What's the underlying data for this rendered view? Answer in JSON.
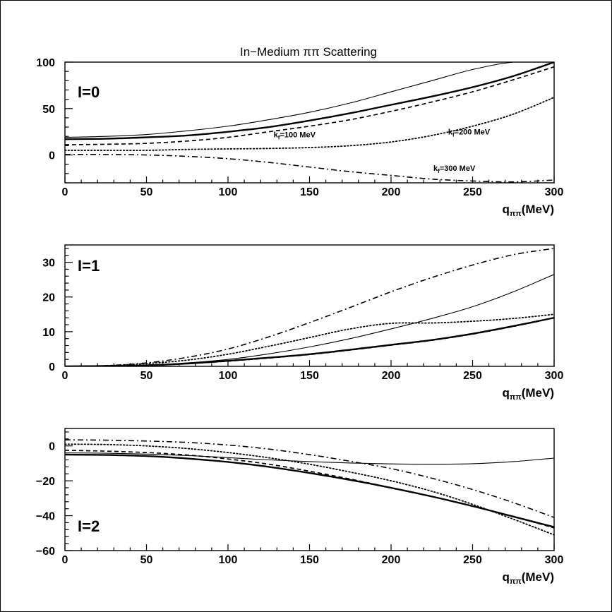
{
  "figure": {
    "title": "In−Medium ππ Scattering",
    "xlabel": "q_{ππ}(MeV)",
    "xlabel_main": "q",
    "xlabel_sub": "ππ",
    "xlabel_unit": "(MeV)"
  },
  "chart_data": [
    {
      "type": "line",
      "panel_label": "I=0",
      "title": "In−Medium ππ Scattering",
      "xlabel": "q_{ππ}(MeV)",
      "ylabel": "",
      "xlim": [
        0,
        300
      ],
      "ylim": [
        -30,
        100
      ],
      "xticks": [
        0,
        50,
        100,
        150,
        200,
        250,
        300
      ],
      "yticks": [
        0,
        50,
        100
      ],
      "x": [
        0,
        25,
        50,
        75,
        100,
        125,
        150,
        175,
        200,
        225,
        250,
        275,
        300
      ],
      "series": [
        {
          "style": "thin-solid",
          "values": [
            19,
            20,
            22,
            26,
            31,
            38,
            46,
            56,
            68,
            80,
            92,
            100,
            100
          ]
        },
        {
          "style": "thick-solid",
          "values": [
            17,
            17.5,
            19,
            21,
            25,
            30,
            37,
            45,
            54,
            63,
            73,
            85,
            100
          ]
        },
        {
          "style": "dashed",
          "values": [
            11,
            11.5,
            12.5,
            15,
            19,
            25,
            31,
            38,
            47,
            57,
            68,
            81,
            95
          ]
        },
        {
          "style": "dotted",
          "values": [
            5,
            5,
            5,
            6,
            6.5,
            7,
            8,
            10,
            14,
            21,
            31,
            44,
            62
          ]
        },
        {
          "style": "dash-dot",
          "values": [
            0.5,
            0.5,
            0,
            -1.5,
            -4,
            -8,
            -13,
            -18,
            -22,
            -26,
            -28,
            -29,
            -27
          ]
        }
      ],
      "annotations": [
        {
          "text": "k_f=100 MeV",
          "main": "k",
          "sub": "f",
          "rest": "=100 MeV",
          "x": 128,
          "y": 19
        },
        {
          "text": "k_f=200 MeV",
          "main": "k",
          "sub": "f",
          "rest": "=200 MeV",
          "x": 235,
          "y": 22
        },
        {
          "text": "k_f=300 MeV",
          "main": "k",
          "sub": "f",
          "rest": "=300 MeV",
          "x": 226,
          "y": -17
        }
      ]
    },
    {
      "type": "line",
      "panel_label": "I=1",
      "title": "",
      "xlabel": "q_{ππ}(MeV)",
      "ylabel": "",
      "xlim": [
        0,
        300
      ],
      "ylim": [
        0,
        35
      ],
      "xticks": [
        0,
        50,
        100,
        150,
        200,
        250,
        300
      ],
      "yticks": [
        0,
        10,
        20,
        30
      ],
      "x": [
        0,
        25,
        50,
        75,
        100,
        125,
        150,
        175,
        200,
        225,
        250,
        275,
        300
      ],
      "series": [
        {
          "style": "thin-solid",
          "values": [
            0,
            0.1,
            0.4,
            1.0,
            2.0,
            3.6,
            5.6,
            8.0,
            10.8,
            13.8,
            17.2,
            21.5,
            26.5
          ]
        },
        {
          "style": "thick-solid",
          "values": [
            0,
            0.1,
            0.3,
            0.8,
            1.6,
            2.5,
            3.5,
            4.8,
            6.2,
            7.6,
            9.4,
            11.6,
            14.0
          ]
        },
        {
          "style": "dashed",
          "values": [
            0,
            0.1,
            0.3,
            0.8,
            1.5,
            2.4,
            3.4,
            4.7,
            6.1,
            7.5,
            9.3,
            11.5,
            14.0
          ]
        },
        {
          "style": "dotted",
          "values": [
            0,
            0.2,
            0.8,
            1.8,
            3.5,
            5.8,
            8.3,
            10.8,
            12.4,
            12.5,
            13.0,
            13.8,
            15.0
          ]
        },
        {
          "style": "dash-dot",
          "values": [
            0,
            0.2,
            1.0,
            2.6,
            5.0,
            8.5,
            12.6,
            17.0,
            21.5,
            25.6,
            29.2,
            32.2,
            34.0
          ]
        }
      ]
    },
    {
      "type": "line",
      "panel_label": "I=2",
      "title": "",
      "xlabel": "q_{ππ}(MeV)",
      "ylabel": "",
      "xlim": [
        0,
        300
      ],
      "ylim": [
        -60,
        10
      ],
      "xticks": [
        0,
        50,
        100,
        150,
        200,
        250,
        300
      ],
      "yticks": [
        -60,
        -40,
        -20,
        0
      ],
      "x": [
        0,
        25,
        50,
        75,
        100,
        125,
        150,
        175,
        200,
        225,
        250,
        275,
        300
      ],
      "series": [
        {
          "style": "thin-solid",
          "values": [
            -4,
            -4.2,
            -4.7,
            -5.5,
            -6.7,
            -8,
            -9,
            -9.8,
            -10.3,
            -10.5,
            -10.2,
            -9,
            -7
          ]
        },
        {
          "style": "thick-solid",
          "values": [
            -5,
            -5.2,
            -5.8,
            -7.2,
            -9.2,
            -12,
            -15.5,
            -19.5,
            -24,
            -29,
            -34.5,
            -40.5,
            -46.5
          ]
        },
        {
          "style": "dashed",
          "values": [
            -2.5,
            -3,
            -3.8,
            -5.2,
            -7.5,
            -10.5,
            -14.5,
            -19,
            -24,
            -29,
            -34.5,
            -40.5,
            -47
          ]
        },
        {
          "style": "dotted",
          "values": [
            1,
            0.8,
            0,
            -1.5,
            -3.8,
            -6.8,
            -10.5,
            -15,
            -20,
            -26,
            -33.5,
            -42,
            -51
          ]
        },
        {
          "style": "dash-dot",
          "values": [
            3.5,
            3.3,
            2.8,
            2,
            0.5,
            -1.8,
            -5,
            -8.8,
            -13,
            -18.5,
            -25,
            -32.5,
            -41
          ]
        }
      ]
    }
  ]
}
